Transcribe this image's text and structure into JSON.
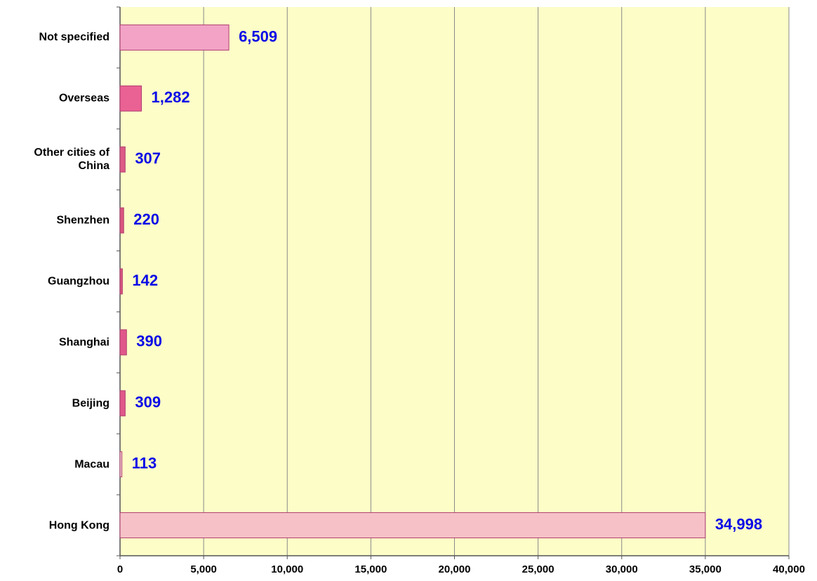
{
  "chart_data": {
    "type": "bar",
    "orientation": "horizontal",
    "categories": [
      "Not specified",
      "Overseas",
      "Other cities of China",
      "Shenzhen",
      "Guangzhou",
      "Shanghai",
      "Beijing",
      "Macau",
      "Hong Kong"
    ],
    "values": [
      6509,
      1282,
      307,
      220,
      142,
      390,
      309,
      113,
      34998
    ],
    "value_labels": [
      "6,509",
      "1,282",
      "307",
      "220",
      "142",
      "390",
      "309",
      "113",
      "34,998"
    ],
    "colors": [
      "#f2a3c6",
      "#ea6193",
      "#dc5a86",
      "#d9557f",
      "#d9557f",
      "#e0588a",
      "#e0588a",
      "#f0c8d0",
      "#f6c2c8"
    ],
    "value_label_color": "#0a0ae6",
    "xlim": [
      0,
      40000
    ],
    "xticks": [
      0,
      {
        "value": 5000,
        "label": "5,000"
      },
      {
        "value": 10000,
        "label": "10,000"
      },
      {
        "value": 15000,
        "label": "15,000"
      },
      {
        "value": 20000,
        "label": "20,000"
      },
      {
        "value": 25000,
        "label": "25,000"
      },
      {
        "value": 30000,
        "label": "30,000"
      },
      {
        "value": 35000,
        "label": "35,000"
      },
      {
        "value": 40000,
        "label": "40,000"
      }
    ],
    "grid": true,
    "plot_background": "#fdfdc8"
  }
}
